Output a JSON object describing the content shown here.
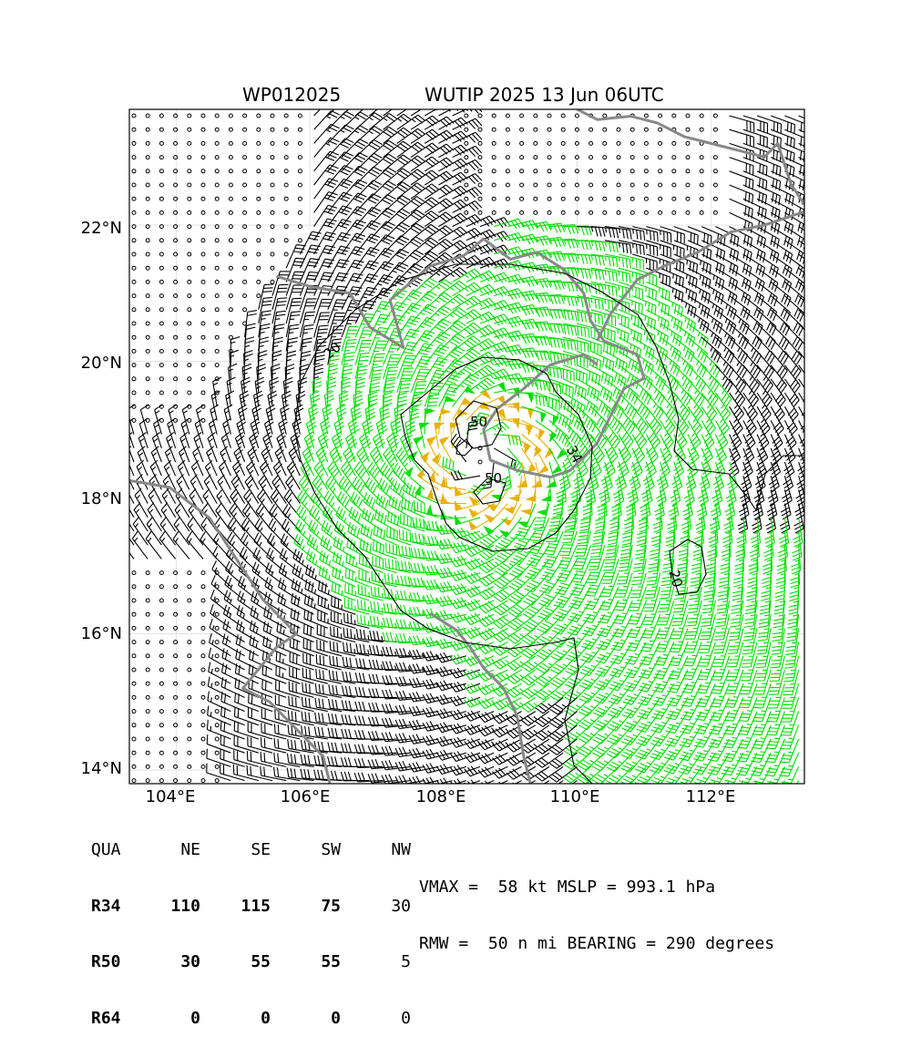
{
  "header": {
    "storm_id": "WP012025",
    "storm_title": "WUTIP 2025 13 Jun 06UTC"
  },
  "axes": {
    "lon_ticks": [
      "104°E",
      "106°E",
      "108°E",
      "110°E",
      "112°E"
    ],
    "lat_ticks": [
      "22°N",
      "20°N",
      "18°N",
      "16°N",
      "14°N"
    ],
    "lon_range": [
      103.3,
      113.4
    ],
    "lat_range": [
      13.8,
      23.7
    ]
  },
  "storm": {
    "center_lon": 108.6,
    "center_lat": 18.6
  },
  "contour_labels": {
    "outer": "20",
    "middle": "34",
    "inner_a": "50",
    "inner_b": "50",
    "east": "20"
  },
  "colors": {
    "calm_barb": "#000000",
    "barb_lt34": "#000000",
    "barb_34_50": "#00e000",
    "barb_50_64": "#e8b000",
    "barb_64_plus": "#ff4000",
    "coastline": "#888888",
    "contour": "#000000",
    "grid": "#dddddd"
  },
  "wind_radii": {
    "columns": [
      "QUA",
      "NE",
      "SE",
      "SW",
      "NW"
    ],
    "rows": [
      {
        "label": "R34",
        "values": [
          "110",
          "115",
          "75",
          "30"
        ]
      },
      {
        "label": "R50",
        "values": [
          "30",
          "55",
          "55",
          "5"
        ]
      },
      {
        "label": "R64",
        "values": [
          "0",
          "0",
          "0",
          "0"
        ]
      }
    ]
  },
  "stats": {
    "line1": "VMAX =  58 kt MSLP = 993.1 hPa",
    "line2": "RMW =  50 n mi BEARING = 290 degrees"
  }
}
